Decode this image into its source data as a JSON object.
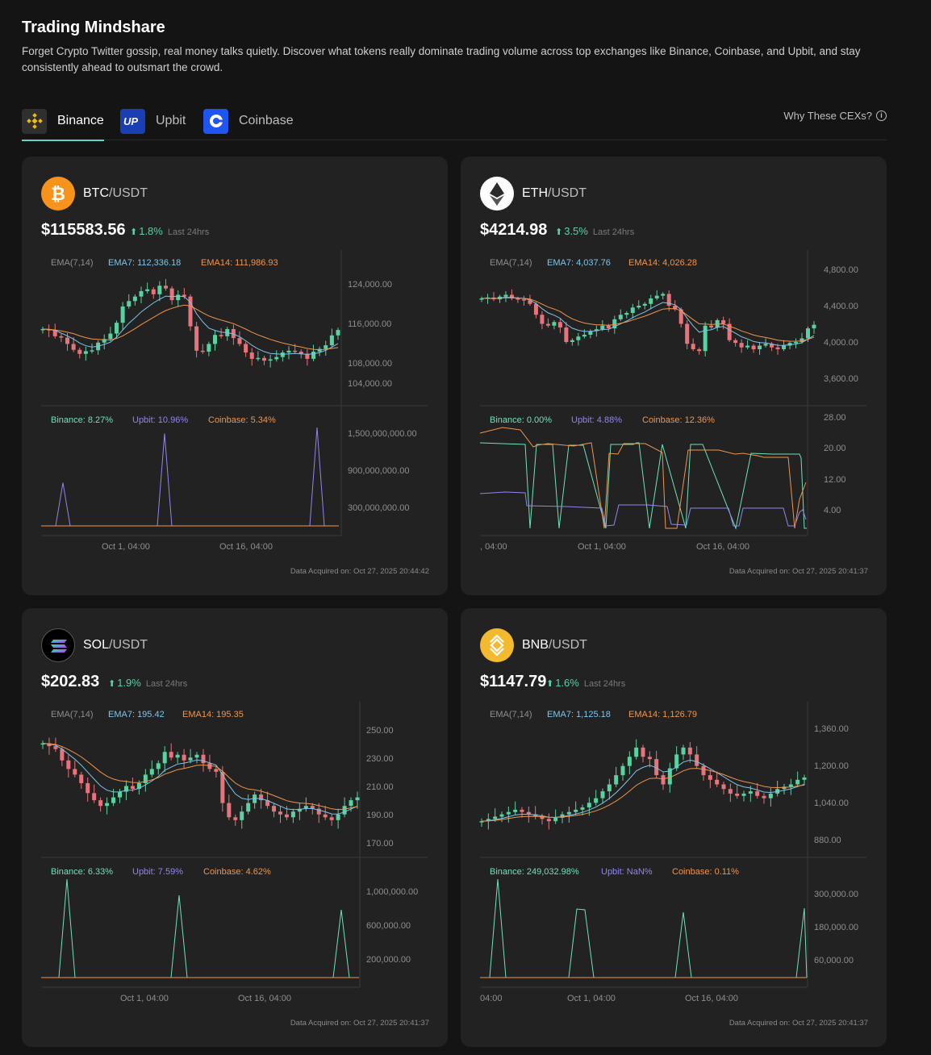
{
  "page": {
    "title": "Trading Mindshare",
    "description": "Forget Crypto Twitter gossip, real money talks quietly. Discover what tokens really dominate trading volume across top exchanges like Binance, Coinbase, and Upbit, and stay consistently ahead to outsmart the crowd."
  },
  "tabs": [
    {
      "label": "Binance",
      "active": true,
      "icon": "binance-icon"
    },
    {
      "label": "Upbit",
      "active": false,
      "icon": "upbit-icon"
    },
    {
      "label": "Coinbase",
      "active": false,
      "icon": "coinbase-icon"
    }
  ],
  "why_link": "Why These CEXs?",
  "colors": {
    "up": "#5ad1a0",
    "down": "#e8737a",
    "ema7": "#7fc4e8",
    "ema14": "#f0954a",
    "binance": "#6ee3b8",
    "upbit": "#8f86f0",
    "coinbase": "#f0954a"
  },
  "cards": [
    {
      "base": "BTC",
      "quote": "/USDT",
      "icon": "bitcoin-icon",
      "price": "$115583.56",
      "change": "1.8%",
      "period": "Last 24hrs",
      "ema_label": "EMA(7,14)",
      "ema7": "EMA7: 112,336.18",
      "ema14": "EMA14: 111,986.93",
      "price_ticks": [
        "124,000.00",
        "116,000.00",
        "108,000.00",
        "104,000.00"
      ],
      "share": {
        "binance": "Binance: 8.27%",
        "upbit": "Upbit: 10.96%",
        "coinbase": "Coinbase: 5.34%"
      },
      "volume_ticks": [
        "1,500,000,000.00",
        "900,000,000.00",
        "300,000,000.00"
      ],
      "x_ticks": [
        "Oct 1, 04:00",
        "Oct 16, 04:00"
      ],
      "acquired": "Data Acquired on: Oct 27, 2025 20:44:42"
    },
    {
      "base": "ETH",
      "quote": "/USDT",
      "icon": "ethereum-icon",
      "price": "$4214.98",
      "change": "3.5%",
      "period": "Last 24hrs",
      "ema_label": "EMA(7,14)",
      "ema7": "EMA7: 4,037.76",
      "ema14": "EMA14: 4,026.28",
      "price_ticks": [
        "4,800.00",
        "4,400.00",
        "4,000.00",
        "3,600.00"
      ],
      "share": {
        "binance": "Binance: 0.00%",
        "upbit": "Upbit: 4.88%",
        "coinbase": "Coinbase: 12.36%"
      },
      "volume_ticks": [
        "28.00",
        "20.00",
        "12.00",
        "4.00"
      ],
      "x_ticks": [
        ", 04:00",
        "Oct 1, 04:00",
        "Oct 16, 04:00"
      ],
      "acquired": "Data Acquired on: Oct 27, 2025 20:41:37"
    },
    {
      "base": "SOL",
      "quote": "/USDT",
      "icon": "solana-icon",
      "price": "$202.83",
      "change": "1.9%",
      "period": "Last 24hrs",
      "ema_label": "EMA(7,14)",
      "ema7": "EMA7: 195.42",
      "ema14": "EMA14: 195.35",
      "price_ticks": [
        "250.00",
        "230.00",
        "210.00",
        "190.00",
        "170.00"
      ],
      "share": {
        "binance": "Binance: 6.33%",
        "upbit": "Upbit: 7.59%",
        "coinbase": "Coinbase: 4.62%"
      },
      "volume_ticks": [
        "1,000,000.00",
        "600,000.00",
        "200,000.00"
      ],
      "x_ticks": [
        "Oct 1, 04:00",
        "Oct 16, 04:00"
      ],
      "acquired": "Data Acquired on: Oct 27, 2025 20:41:37"
    },
    {
      "base": "BNB",
      "quote": "/USDT",
      "icon": "bnb-icon",
      "price": "$1147.79",
      "change": "1.6%",
      "period": "Last 24hrs",
      "ema_label": "EMA(7,14)",
      "ema7": "EMA7: 1,125.18",
      "ema14": "EMA14: 1,126.79",
      "price_ticks": [
        "1,360.00",
        "1,200.00",
        "1,040.00",
        "880.00"
      ],
      "share": {
        "binance": "Binance: 249,032.98%",
        "upbit": "Upbit: NaN%",
        "coinbase": "Coinbase: 0.11%"
      },
      "volume_ticks": [
        "300,000.00",
        "180,000.00",
        "60,000.00"
      ],
      "x_ticks": [
        "04:00",
        "Oct 1, 04:00",
        "Oct 16, 04:00"
      ],
      "acquired": "Data Acquired on: Oct 27, 2025 20:41:37"
    }
  ],
  "chart_data": [
    {
      "type": "candlestick",
      "pair": "BTC/USDT",
      "ylim": [
        100000,
        130000
      ],
      "y_ticks": [
        124000,
        116000,
        108000,
        104000
      ],
      "close": [
        114800,
        114500,
        113200,
        112900,
        111500,
        110200,
        109300,
        109900,
        110100,
        111800,
        112600,
        113800,
        116200,
        119800,
        121000,
        122000,
        123200,
        123600,
        122500,
        124400,
        123800,
        121200,
        122400,
        122000,
        115400,
        110000,
        109800,
        111500,
        113500,
        113200,
        114800,
        112800,
        111500,
        109600,
        108200,
        108400,
        107800,
        108100,
        108600,
        109600,
        110000,
        109800,
        109300,
        108200,
        109800,
        110400,
        111200,
        113400,
        114600
      ],
      "ema7": [
        114800,
        114700,
        114500,
        113900,
        113300,
        112600,
        111700,
        111100,
        110800,
        111000,
        111400,
        111900,
        113000,
        114600,
        116100,
        117300,
        118600,
        119600,
        120600,
        121400,
        122100,
        122000,
        122100,
        122000,
        120700,
        118200,
        116400,
        115000,
        114500,
        114100,
        114000,
        113700,
        113100,
        112200,
        111200,
        110400,
        109800,
        109400,
        109300,
        109200,
        109300,
        109400,
        109300,
        109200,
        109300,
        109600,
        110100,
        110800,
        111600
      ],
      "ema14": [
        114800,
        114750,
        114600,
        114400,
        114100,
        113800,
        113300,
        112900,
        112600,
        112500,
        112400,
        112400,
        112700,
        113300,
        114100,
        114900,
        115800,
        116600,
        117400,
        118200,
        118900,
        119400,
        119800,
        120100,
        119900,
        119200,
        118400,
        117700,
        117200,
        116800,
        116400,
        116000,
        115400,
        114800,
        114100,
        113500,
        113000,
        112500,
        112100,
        111700,
        111400,
        111100,
        110800,
        110500,
        110300,
        110200,
        110300,
        110500,
        110700
      ],
      "share_series": {
        "binance": [
          0,
          0,
          0,
          0,
          0,
          0,
          0,
          0,
          0,
          0,
          0,
          0,
          0,
          0,
          0,
          0,
          0,
          0,
          0,
          0,
          0,
          0,
          0,
          0,
          0,
          0,
          0,
          0,
          0,
          0,
          0,
          0,
          0,
          0,
          0,
          0,
          0,
          0,
          0,
          0
        ],
        "upbit": [
          0,
          0,
          0,
          700000000,
          0,
          0,
          0,
          0,
          0,
          0,
          0,
          0,
          0,
          0,
          0,
          0,
          0,
          1500000000,
          0,
          0,
          0,
          0,
          0,
          0,
          0,
          0,
          0,
          0,
          0,
          0,
          0,
          0,
          0,
          0,
          0,
          0,
          0,
          0,
          1600000000,
          0,
          0,
          0
        ]
      }
    }
  ]
}
